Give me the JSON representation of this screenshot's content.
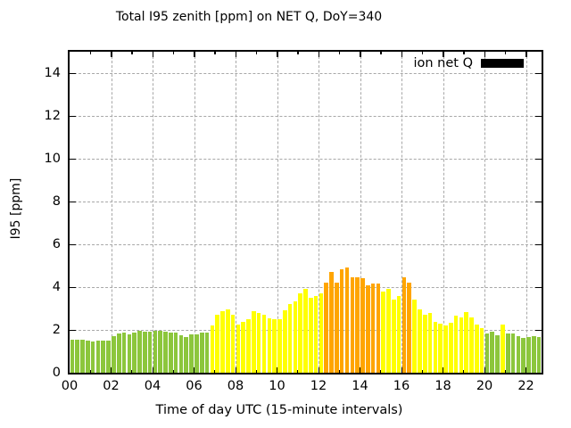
{
  "chart_data": {
    "type": "bar",
    "title": "Total I95 zenith [ppm] on NET Q, DoY=340",
    "xlabel": "Time of day UTC (15-minute intervals)",
    "ylabel": "I95 [ppm]",
    "legend": {
      "label": "ion net Q",
      "swatch_color": "#000000",
      "position": "top-right-inside"
    },
    "bar_interval_minutes": 15,
    "axes": {
      "ylim": [
        0,
        15
      ],
      "xlim_hours": [
        0,
        22.75
      ],
      "yticks": [
        0,
        2,
        4,
        6,
        8,
        10,
        12,
        14
      ],
      "xtick_hours": [
        0,
        2,
        4,
        6,
        8,
        10,
        12,
        14,
        16,
        18,
        20,
        22
      ],
      "xtick_labels": [
        "00",
        "02",
        "04",
        "06",
        "08",
        "10",
        "12",
        "14",
        "16",
        "18",
        "20",
        "22"
      ],
      "minor_xtick_every_hours": 1,
      "grid": "dashed"
    },
    "level_colors": {
      "green": "#8CC63C",
      "yellow": "#FFFF00",
      "orange": "#FFA500"
    },
    "x": [
      "00:00",
      "00:15",
      "00:30",
      "00:45",
      "01:00",
      "01:15",
      "01:30",
      "01:45",
      "02:00",
      "02:15",
      "02:30",
      "02:45",
      "03:00",
      "03:15",
      "03:30",
      "03:45",
      "04:00",
      "04:15",
      "04:30",
      "04:45",
      "05:00",
      "05:15",
      "05:30",
      "05:45",
      "06:00",
      "06:15",
      "06:30",
      "06:45",
      "07:00",
      "07:15",
      "07:30",
      "07:45",
      "08:00",
      "08:15",
      "08:30",
      "08:45",
      "09:00",
      "09:15",
      "09:30",
      "09:45",
      "10:00",
      "10:15",
      "10:30",
      "10:45",
      "11:00",
      "11:15",
      "11:30",
      "11:45",
      "12:00",
      "12:15",
      "12:30",
      "12:45",
      "13:00",
      "13:15",
      "13:30",
      "13:45",
      "14:00",
      "14:15",
      "14:30",
      "14:45",
      "15:00",
      "15:15",
      "15:30",
      "15:45",
      "16:00",
      "16:15",
      "16:30",
      "16:45",
      "17:00",
      "17:15",
      "17:30",
      "17:45",
      "18:00",
      "18:15",
      "18:30",
      "18:45",
      "19:00",
      "19:15",
      "19:30",
      "19:45",
      "20:00",
      "20:15",
      "20:30",
      "20:45",
      "21:00",
      "21:15",
      "21:30",
      "21:45",
      "22:00",
      "22:15",
      "22:30"
    ],
    "values": [
      1.55,
      1.55,
      1.55,
      1.5,
      1.45,
      1.48,
      1.49,
      1.5,
      1.7,
      1.83,
      1.89,
      1.79,
      1.86,
      1.97,
      1.93,
      1.93,
      1.96,
      1.94,
      1.92,
      1.89,
      1.86,
      1.75,
      1.67,
      1.78,
      1.81,
      1.86,
      1.88,
      2.2,
      2.72,
      2.89,
      2.95,
      2.71,
      2.25,
      2.36,
      2.5,
      2.89,
      2.8,
      2.71,
      2.55,
      2.5,
      2.5,
      2.9,
      3.22,
      3.34,
      3.72,
      3.93,
      3.52,
      3.58,
      3.7,
      4.22,
      4.7,
      4.22,
      4.84,
      4.93,
      4.45,
      4.45,
      4.4,
      4.08,
      4.15,
      4.15,
      3.78,
      3.92,
      3.4,
      3.58,
      4.44,
      4.2,
      3.4,
      2.95,
      2.71,
      2.8,
      2.36,
      2.29,
      2.22,
      2.32,
      2.68,
      2.6,
      2.85,
      2.57,
      2.25,
      2.08,
      1.85,
      1.9,
      1.75,
      2.25,
      1.85,
      1.82,
      1.7,
      1.62,
      1.65,
      1.7,
      1.67
    ],
    "levels": [
      "green",
      "green",
      "green",
      "green",
      "green",
      "green",
      "green",
      "green",
      "green",
      "green",
      "green",
      "green",
      "green",
      "green",
      "green",
      "green",
      "green",
      "green",
      "green",
      "green",
      "green",
      "green",
      "green",
      "green",
      "green",
      "green",
      "green",
      "yellow",
      "yellow",
      "yellow",
      "yellow",
      "yellow",
      "yellow",
      "yellow",
      "yellow",
      "yellow",
      "yellow",
      "yellow",
      "yellow",
      "yellow",
      "yellow",
      "yellow",
      "yellow",
      "yellow",
      "yellow",
      "yellow",
      "yellow",
      "yellow",
      "yellow",
      "orange",
      "orange",
      "orange",
      "orange",
      "orange",
      "orange",
      "orange",
      "orange",
      "orange",
      "orange",
      "orange",
      "yellow",
      "yellow",
      "yellow",
      "yellow",
      "orange",
      "orange",
      "yellow",
      "yellow",
      "yellow",
      "yellow",
      "yellow",
      "yellow",
      "yellow",
      "yellow",
      "yellow",
      "yellow",
      "yellow",
      "yellow",
      "yellow",
      "yellow",
      "green",
      "green",
      "green",
      "yellow",
      "green",
      "green",
      "green",
      "green",
      "green",
      "green",
      "green"
    ]
  },
  "style_colors": {
    "background": "#FFFFFF",
    "frame": "#000000",
    "grid": "#A8A8A8",
    "text": "#000000"
  }
}
